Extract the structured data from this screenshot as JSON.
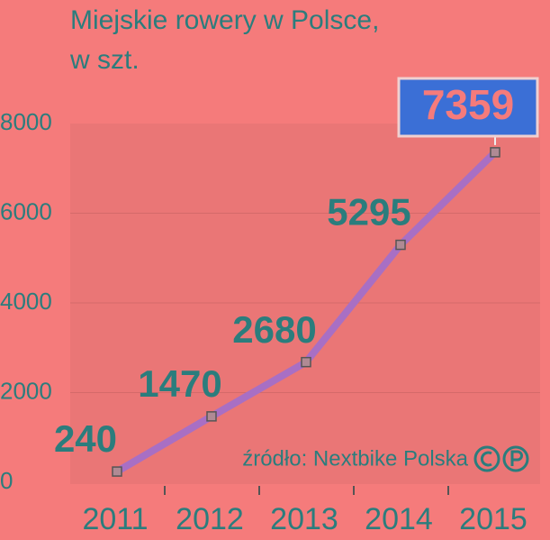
{
  "chart_data": {
    "type": "line",
    "title": [
      "Miejskie rowery w Polsce,",
      "w szt."
    ],
    "source": "źródło: Nextbike Polska",
    "categories": [
      "2011",
      "2012",
      "2013",
      "2014",
      "2015"
    ],
    "values": [
      240,
      1470,
      2680,
      5295,
      7359
    ],
    "color": "#a86fc4",
    "ylim": [
      0,
      8000
    ],
    "yticks": [
      0,
      2000,
      4000,
      6000,
      8000
    ],
    "grid": true
  }
}
